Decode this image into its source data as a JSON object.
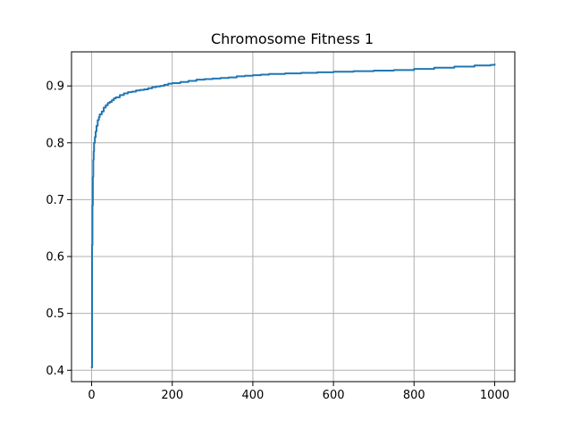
{
  "chart_data": {
    "type": "line",
    "title": "Chromosome Fitness 1",
    "xlabel": "",
    "ylabel": "",
    "xlim": [
      -50,
      1050
    ],
    "ylim": [
      0.38,
      0.96
    ],
    "xticks": [
      0,
      200,
      400,
      600,
      800,
      1000
    ],
    "yticks": [
      0.4,
      0.5,
      0.6,
      0.7,
      0.8,
      0.9
    ],
    "grid": true,
    "series": [
      {
        "color": "#1f77b4",
        "x": [
          0,
          1,
          2,
          3,
          4,
          5,
          6,
          8,
          10,
          12,
          15,
          18,
          20,
          25,
          30,
          35,
          40,
          45,
          50,
          55,
          60,
          70,
          80,
          90,
          100,
          110,
          120,
          130,
          140,
          150,
          160,
          170,
          180,
          190,
          200,
          220,
          240,
          260,
          280,
          300,
          320,
          340,
          360,
          380,
          400,
          420,
          440,
          460,
          480,
          500,
          520,
          540,
          560,
          580,
          600,
          650,
          700,
          750,
          800,
          850,
          900,
          950,
          990,
          1000
        ],
        "y": [
          0.405,
          0.62,
          0.69,
          0.74,
          0.77,
          0.785,
          0.8,
          0.81,
          0.82,
          0.83,
          0.84,
          0.845,
          0.85,
          0.855,
          0.862,
          0.866,
          0.87,
          0.872,
          0.875,
          0.878,
          0.88,
          0.884,
          0.887,
          0.889,
          0.89,
          0.892,
          0.893,
          0.894,
          0.896,
          0.898,
          0.899,
          0.9,
          0.902,
          0.904,
          0.905,
          0.907,
          0.909,
          0.911,
          0.912,
          0.913,
          0.914,
          0.915,
          0.917,
          0.918,
          0.919,
          0.92,
          0.921,
          0.921,
          0.922,
          0.922,
          0.923,
          0.923,
          0.924,
          0.924,
          0.925,
          0.926,
          0.927,
          0.928,
          0.93,
          0.932,
          0.934,
          0.936,
          0.937,
          0.938
        ]
      }
    ]
  }
}
